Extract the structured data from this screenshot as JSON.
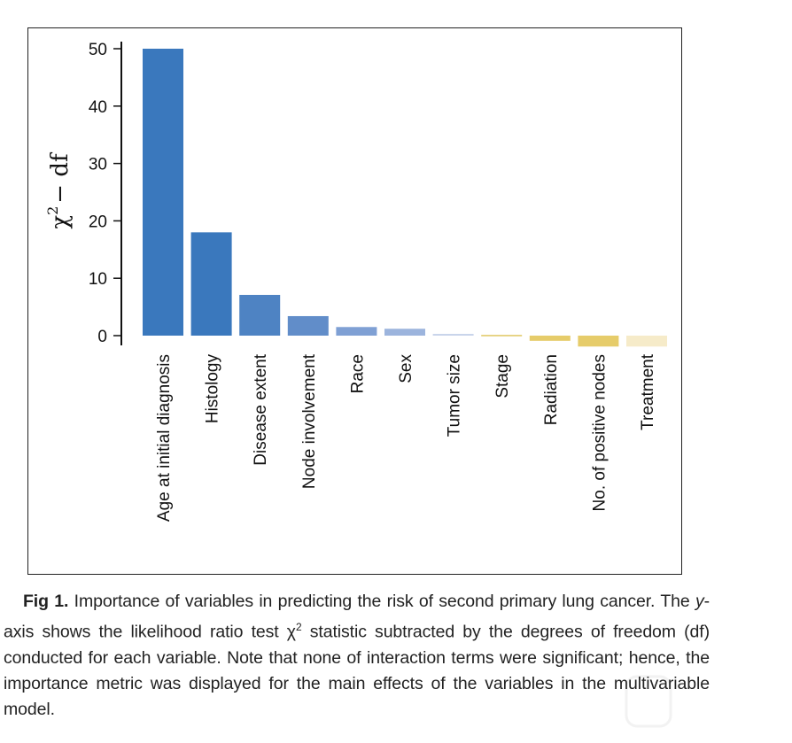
{
  "chart_data": {
    "type": "bar",
    "title": "",
    "xlabel": "",
    "ylabel": "χ2 − df",
    "ylabel_parts": {
      "base": "χ",
      "sup": "2",
      "rest": "− df"
    },
    "ylim": [
      -2,
      50
    ],
    "yticks": [
      0,
      10,
      20,
      30,
      40,
      50
    ],
    "grid": false,
    "categories": [
      "Age at initial diagnosis",
      "Histology",
      "Disease extent",
      "Node involvement",
      "Race",
      "Sex",
      "Tumor size",
      "Stage",
      "Radiation",
      "No. of positive nodes",
      "Treatment"
    ],
    "values": [
      50,
      18,
      7.1,
      3.4,
      1.5,
      1.2,
      0.3,
      0.1,
      -0.9,
      -1.9,
      -1.9
    ],
    "colors": [
      "#3a78bd",
      "#3a78bd",
      "#4e83c3",
      "#618dc9",
      "#7fa0d4",
      "#9cb4dd",
      "#c7d3ea",
      "#d9ba3b",
      "#e6cc6a",
      "#e6cc6a",
      "#f6ebc9"
    ]
  },
  "caption": {
    "fig_label": "Fig 1.",
    "text_1": "Importance of variables in predicting the risk of second primary lung cancer. The ",
    "y_italic": "y",
    "text_2": "-axis shows the likelihood ratio test χ",
    "sup": "2",
    "text_3": " statistic subtracted by the degrees of freedom (df) conducted for each variable. Note that none of interaction terms were significant; hence, the importance metric was displayed for the main effects of the variables in the multivariable model."
  }
}
